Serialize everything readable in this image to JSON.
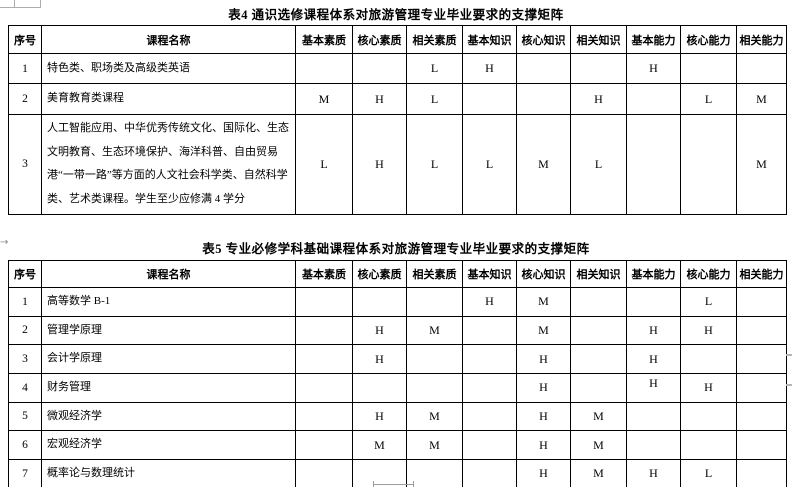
{
  "artifacts": {
    "tab_arrow": "→"
  },
  "tables": [
    {
      "title": "表4  通识选修课程体系对旅游管理专业毕业要求的支撑矩阵",
      "columns": [
        "序号",
        "课程名称",
        "基本素质",
        "核心素质",
        "相关素质",
        "基本知识",
        "核心知识",
        "相关知识",
        "基本能力",
        "核心能力",
        "相关能力"
      ],
      "rows": [
        {
          "no": "1",
          "course": "特色类、职场类及高级类英语",
          "values": [
            "",
            "",
            "L",
            "H",
            "",
            "",
            "H",
            "",
            ""
          ]
        },
        {
          "no": "2",
          "course": "美育教育类课程",
          "values": [
            "M",
            "H",
            "L",
            "",
            "",
            "H",
            "",
            "L",
            "M"
          ]
        },
        {
          "no": "3",
          "course": "人工智能应用、中华优秀传统文化、国际化、生态文明教育、生态环境保护、海洋科普、自由贸易港“一带一路”等方面的人文社会科学类、自然科学类、艺术类课程。学生至少应修满 4 学分",
          "values": [
            "L",
            "H",
            "L",
            "L",
            "M",
            "L",
            "",
            "",
            "M"
          ]
        }
      ]
    },
    {
      "title": "表5 专业必修学科基础课程体系对旅游管理专业毕业要求的支撑矩阵",
      "columns": [
        "序号",
        "课程名称",
        "基本素质",
        "核心素质",
        "相关素质",
        "基本知识",
        "核心知识",
        "相关知识",
        "基本能力",
        "核心能力",
        "相关能力"
      ],
      "rows": [
        {
          "no": "1",
          "course": "高等数学 B-1",
          "values": [
            "",
            "",
            "",
            "H",
            "M",
            "",
            "",
            "L",
            ""
          ]
        },
        {
          "no": "2",
          "course": "管理学原理",
          "values": [
            "",
            "H",
            "M",
            "",
            "M",
            "",
            "H",
            "H",
            ""
          ]
        },
        {
          "no": "3",
          "course": "会计学原理",
          "values": [
            "",
            "H",
            "",
            "",
            "H",
            "",
            "H",
            "",
            ""
          ]
        },
        {
          "no": "4",
          "course": "财务管理",
          "values": [
            "",
            "",
            "",
            "",
            "H",
            "",
            "H",
            "H",
            ""
          ]
        },
        {
          "no": "5",
          "course": "微观经济学",
          "values": [
            "",
            "H",
            "M",
            "",
            "H",
            "M",
            "",
            "",
            ""
          ]
        },
        {
          "no": "6",
          "course": "宏观经济学",
          "values": [
            "",
            "M",
            "M",
            "",
            "H",
            "M",
            "",
            "",
            ""
          ]
        },
        {
          "no": "7",
          "course": "概率论与数理统计",
          "values": [
            "",
            "",
            "",
            "",
            "H",
            "M",
            "H",
            "L",
            ""
          ]
        }
      ]
    }
  ]
}
